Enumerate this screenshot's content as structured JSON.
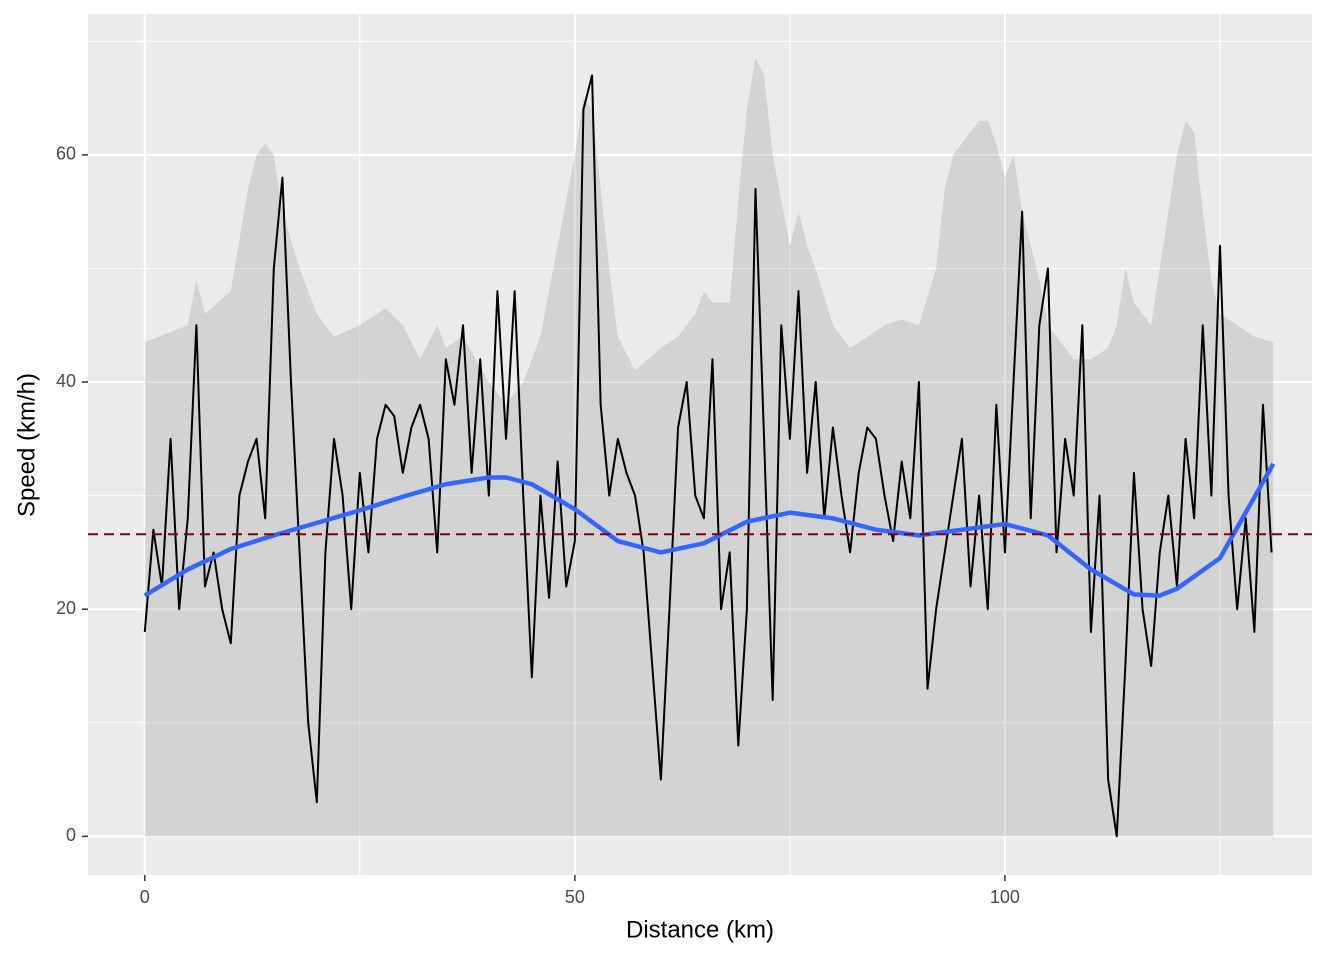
{
  "chart_data": {
    "type": "line",
    "xlabel": "Distance (km)",
    "ylabel": "Speed (km/h)",
    "xlim": [
      -6.6,
      135.7
    ],
    "ylim": [
      -3.4,
      72.4
    ],
    "xticks": [
      0,
      50,
      100
    ],
    "yticks": [
      0,
      20,
      40,
      60
    ],
    "xminor": [
      25,
      75,
      125
    ],
    "yminor": [
      10,
      30,
      50,
      70
    ],
    "grid": true,
    "panel_color": "#ebebeb",
    "area": {
      "color": "#9a9a9a",
      "x": [
        0,
        5,
        6,
        7,
        10,
        12,
        13,
        14,
        15,
        16,
        18,
        20,
        22,
        25,
        28,
        30,
        32,
        34,
        35,
        37,
        40,
        42,
        44,
        46,
        48,
        50,
        51,
        52,
        54,
        55,
        57,
        60,
        62,
        64,
        65,
        66,
        68,
        69,
        70,
        71,
        72,
        73,
        75,
        76,
        77,
        78,
        80,
        82,
        84,
        86,
        88,
        90,
        92,
        93,
        94,
        96,
        97,
        98,
        99,
        100,
        101,
        102,
        103,
        104,
        105,
        107,
        108,
        110,
        112,
        113,
        114,
        115,
        117,
        118,
        119,
        120,
        121,
        122,
        123,
        124,
        125,
        127,
        129,
        131.2
      ],
      "values": [
        43.5,
        45,
        49,
        46,
        48,
        57,
        60,
        61,
        60,
        55,
        50,
        46,
        44,
        45,
        46.5,
        45,
        42,
        45,
        43,
        44,
        40,
        38,
        40,
        44,
        52,
        60,
        65,
        64,
        50,
        44,
        41,
        43,
        44,
        46,
        48,
        47,
        47,
        56,
        64,
        68.5,
        67,
        60,
        52,
        55,
        52,
        50,
        45,
        43,
        44,
        45,
        45.5,
        45,
        50,
        57,
        60,
        62,
        63,
        63,
        61,
        58,
        60,
        55,
        52,
        49,
        45,
        43,
        42,
        42,
        43,
        45,
        50,
        47,
        45,
        50,
        55,
        60,
        63,
        62,
        55,
        49,
        46,
        45,
        44,
        43.5
      ]
    },
    "speed": {
      "color": "#000000",
      "x": [
        0,
        1,
        2,
        3,
        4,
        5,
        6,
        7,
        8,
        9,
        10,
        11,
        12,
        13,
        14,
        15,
        16,
        17,
        18,
        19,
        20,
        21,
        22,
        23,
        24,
        25,
        26,
        27,
        28,
        29,
        30,
        31,
        32,
        33,
        34,
        35,
        36,
        37,
        38,
        39,
        40,
        41,
        42,
        43,
        44,
        45,
        46,
        47,
        48,
        49,
        50,
        51,
        52,
        53,
        54,
        55,
        56,
        57,
        58,
        59,
        60,
        61,
        62,
        63,
        64,
        65,
        66,
        67,
        68,
        69,
        70,
        71,
        72,
        73,
        74,
        75,
        76,
        77,
        78,
        79,
        80,
        81,
        82,
        83,
        84,
        85,
        86,
        87,
        88,
        89,
        90,
        91,
        92,
        93,
        94,
        95,
        96,
        97,
        98,
        99,
        100,
        101,
        102,
        103,
        104,
        105,
        106,
        107,
        108,
        109,
        110,
        111,
        112,
        113,
        114,
        115,
        116,
        117,
        118,
        119,
        120,
        121,
        122,
        123,
        124,
        125,
        126,
        127,
        128,
        129,
        130,
        131
      ],
      "values": [
        18,
        27,
        22,
        35,
        20,
        28,
        45,
        22,
        25,
        20,
        17,
        30,
        33,
        35,
        28,
        50,
        58,
        40,
        25,
        10,
        3,
        25,
        35,
        30,
        20,
        32,
        25,
        35,
        38,
        37,
        32,
        36,
        38,
        35,
        25,
        42,
        38,
        45,
        32,
        42,
        30,
        48,
        35,
        48,
        30,
        14,
        30,
        21,
        33,
        22,
        26,
        64,
        67,
        38,
        30,
        35,
        32,
        30,
        25,
        15,
        5,
        20,
        36,
        40,
        30,
        28,
        42,
        20,
        25,
        8,
        20,
        57,
        35,
        12,
        45,
        35,
        48,
        32,
        40,
        28,
        36,
        30,
        25,
        32,
        36,
        35,
        30,
        26,
        33,
        28,
        40,
        13,
        20,
        25,
        30,
        35,
        22,
        30,
        20,
        38,
        25,
        40,
        55,
        28,
        45,
        50,
        25,
        35,
        30,
        45,
        18,
        30,
        5,
        0,
        15,
        32,
        20,
        15,
        25,
        30,
        22,
        35,
        28,
        45,
        30,
        52,
        30,
        20,
        28,
        18,
        38,
        25
      ]
    },
    "smooth": {
      "color": "#3366ff",
      "x": [
        0,
        5,
        10,
        15,
        20,
        25,
        30,
        35,
        40,
        42,
        45,
        50,
        55,
        60,
        65,
        70,
        75,
        80,
        85,
        90,
        95,
        100,
        105,
        110,
        115,
        118,
        120,
        125,
        131.2
      ],
      "values": [
        21.2,
        23.5,
        25.3,
        26.5,
        27.6,
        28.7,
        29.9,
        31,
        31.6,
        31.6,
        31,
        28.8,
        26,
        25,
        25.8,
        27.7,
        28.5,
        28,
        27,
        26.5,
        27,
        27.5,
        26.5,
        23.5,
        21.3,
        21.2,
        21.8,
        24.5,
        32.8
      ]
    },
    "mean_line": {
      "value": 26.6,
      "color": "#8b0000"
    }
  }
}
